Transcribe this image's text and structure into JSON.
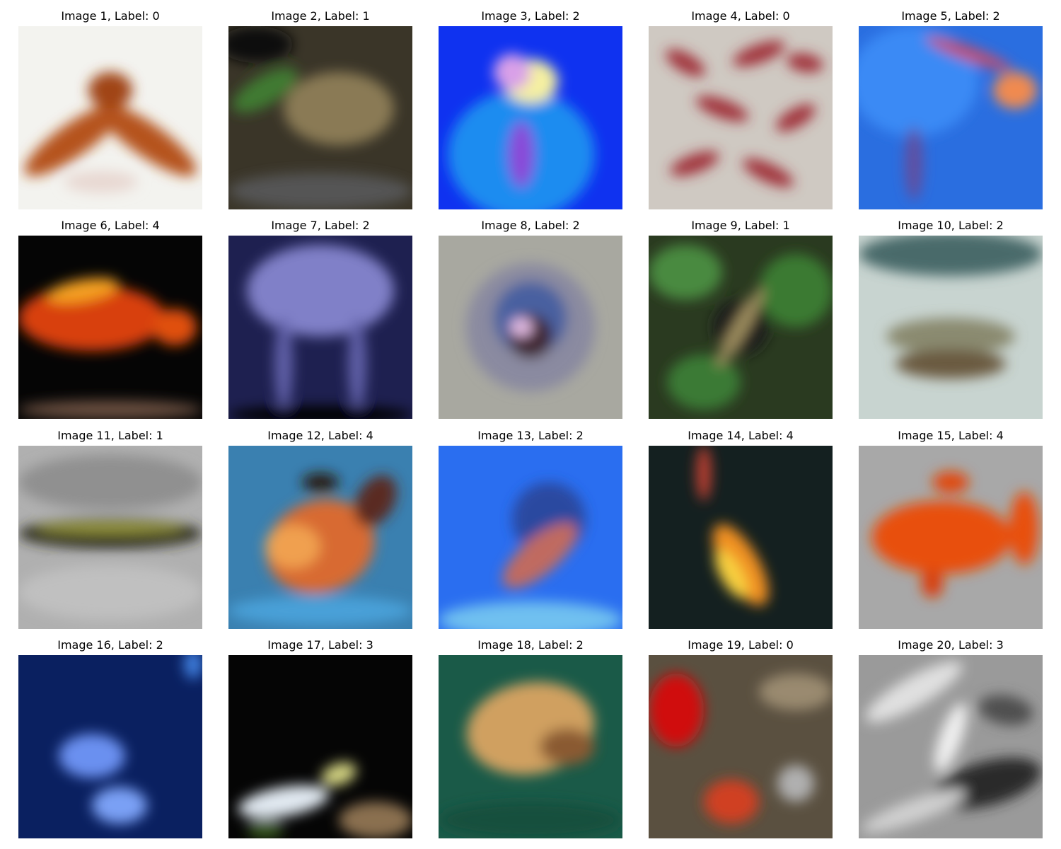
{
  "images": [
    {
      "title": "Image 1, Label: 0"
    },
    {
      "title": "Image 2, Label: 1"
    },
    {
      "title": "Image 3, Label: 2"
    },
    {
      "title": "Image 4, Label: 0"
    },
    {
      "title": "Image 5, Label: 2"
    },
    {
      "title": "Image 6, Label: 4"
    },
    {
      "title": "Image 7, Label: 2"
    },
    {
      "title": "Image 8, Label: 2"
    },
    {
      "title": "Image 9, Label: 1"
    },
    {
      "title": "Image 10, Label: 2"
    },
    {
      "title": "Image 11, Label: 1"
    },
    {
      "title": "Image 12, Label: 4"
    },
    {
      "title": "Image 13, Label: 2"
    },
    {
      "title": "Image 14, Label: 4"
    },
    {
      "title": "Image 15, Label: 4"
    },
    {
      "title": "Image 16, Label: 2"
    },
    {
      "title": "Image 17, Label: 3"
    },
    {
      "title": "Image 18, Label: 2"
    },
    {
      "title": "Image 19, Label: 0"
    },
    {
      "title": "Image 20, Label: 3"
    }
  ]
}
